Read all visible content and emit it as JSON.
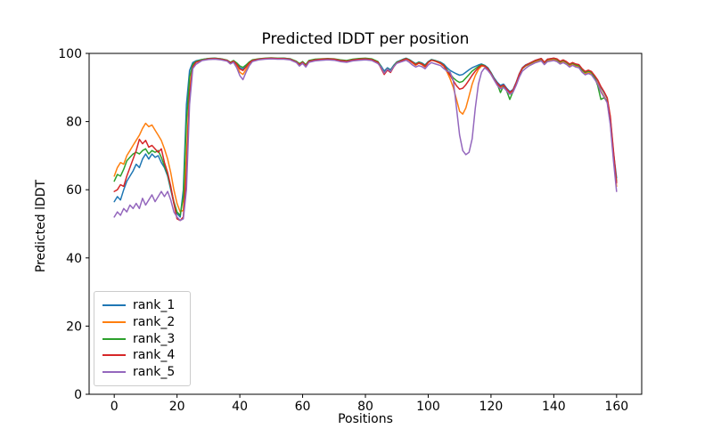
{
  "figure": {
    "title": "Predicted lDDT per position",
    "xlabel": "Positions",
    "ylabel": "Predicted lDDT",
    "background_color": "#ffffff",
    "axis_color": "#000000"
  },
  "chart_data": {
    "type": "line",
    "title": "Predicted lDDT per position",
    "xlabel": "Positions",
    "ylabel": "Predicted lDDT",
    "xlim": [
      -8,
      168
    ],
    "ylim": [
      0,
      100
    ],
    "x_ticks": [
      0,
      20,
      40,
      60,
      80,
      100,
      120,
      140,
      160
    ],
    "y_ticks": [
      0,
      20,
      40,
      60,
      80,
      100
    ],
    "grid": false,
    "legend_position": "lower left",
    "legend_entries": [
      "rank_1",
      "rank_2",
      "rank_3",
      "rank_4",
      "rank_5"
    ],
    "x": [
      0,
      1,
      2,
      3,
      4,
      5,
      6,
      7,
      8,
      9,
      10,
      11,
      12,
      13,
      14,
      15,
      16,
      17,
      18,
      19,
      20,
      21,
      22,
      23,
      24,
      25,
      26,
      28,
      30,
      32,
      34,
      36,
      37,
      38,
      39,
      40,
      41,
      42,
      43,
      44,
      46,
      48,
      50,
      52,
      54,
      56,
      58,
      59,
      60,
      61,
      62,
      64,
      66,
      68,
      70,
      72,
      74,
      76,
      78,
      80,
      82,
      84,
      85,
      86,
      87,
      88,
      89,
      90,
      92,
      93,
      94,
      95,
      96,
      97,
      98,
      99,
      100,
      101,
      102,
      103,
      104,
      105,
      106,
      107,
      108,
      109,
      110,
      111,
      112,
      113,
      114,
      115,
      116,
      117,
      118,
      119,
      120,
      121,
      122,
      123,
      124,
      125,
      126,
      127,
      128,
      129,
      130,
      131,
      132,
      134,
      136,
      137,
      138,
      140,
      141,
      142,
      143,
      144,
      145,
      146,
      147,
      148,
      149,
      150,
      151,
      152,
      153,
      154,
      155,
      156,
      157,
      158,
      159,
      160
    ],
    "series": [
      {
        "name": "rank_1",
        "color": "#1f77b4",
        "values": [
          56.5,
          58,
          57,
          60,
          62.5,
          64,
          65.5,
          67.5,
          66.5,
          69,
          70.5,
          69,
          70.5,
          69.5,
          70,
          68,
          66.5,
          64,
          60,
          56,
          53,
          52,
          60,
          85,
          95,
          97.3,
          97.8,
          98.2,
          98.5,
          98.6,
          98.4,
          98,
          97.3,
          97.8,
          97,
          95.8,
          95.4,
          96.2,
          97.3,
          98,
          98.4,
          98.5,
          98.6,
          98.5,
          98.6,
          98.4,
          97.6,
          96.8,
          97.5,
          96.5,
          97.8,
          98.2,
          98.3,
          98.4,
          98.3,
          98,
          97.8,
          98.2,
          98.4,
          98.5,
          98.3,
          97.5,
          96.3,
          94.8,
          95.8,
          95.2,
          96.5,
          97.5,
          98.3,
          98.6,
          98.2,
          97.6,
          97,
          97.5,
          97.2,
          96.6,
          97.6,
          98.2,
          98,
          97.7,
          97.4,
          96.8,
          95.8,
          95,
          94.5,
          94,
          93.6,
          93.8,
          94.5,
          95.2,
          95.8,
          96.2,
          96.6,
          96.9,
          96.5,
          95.8,
          94.4,
          92.8,
          91.5,
          90.6,
          91,
          89.8,
          88.8,
          89.4,
          91.5,
          94,
          95.8,
          96.6,
          97,
          97.9,
          98.5,
          97.4,
          98.3,
          98.6,
          98.3,
          97.6,
          98,
          97.5,
          96.8,
          97.2,
          96.8,
          96.6,
          95.4,
          94.6,
          95,
          94.6,
          93.4,
          92,
          90,
          88.5,
          86.8,
          81,
          71,
          63.5
        ]
      },
      {
        "name": "rank_2",
        "color": "#ff7f0e",
        "values": [
          64,
          66.5,
          68,
          67.5,
          70,
          71.5,
          73,
          74.5,
          76,
          78,
          79.5,
          78.5,
          79,
          77.5,
          76,
          74.5,
          72,
          69,
          65,
          60,
          56,
          53.5,
          54,
          70,
          90,
          96.5,
          97.5,
          98.1,
          98.4,
          98.5,
          98.3,
          97.8,
          97,
          97.5,
          96.2,
          94.5,
          93.8,
          95.3,
          96.8,
          97.8,
          98.3,
          98.4,
          98.5,
          98.4,
          98.5,
          98.3,
          97.4,
          96.5,
          97.3,
          96.2,
          97.6,
          98,
          98.2,
          98.3,
          98.2,
          97.8,
          97.6,
          98,
          98.2,
          98.3,
          98.1,
          97.2,
          95.8,
          94,
          95.3,
          94.6,
          96.2,
          97.3,
          98,
          98.4,
          97.9,
          97.2,
          96.5,
          97.1,
          96.7,
          96,
          97.3,
          98,
          97.8,
          97.4,
          97,
          96.2,
          94.5,
          92.5,
          90,
          86.5,
          83,
          82.2,
          84,
          87.5,
          91,
          93.5,
          95.3,
          96.3,
          96.2,
          95.4,
          94,
          92.3,
          90.8,
          89.8,
          90.2,
          89.2,
          88.2,
          89,
          91.2,
          93.8,
          95.5,
          96.3,
          96.7,
          97.5,
          98.1,
          97,
          97.9,
          98.2,
          97.9,
          97.2,
          97.6,
          97.1,
          96.3,
          96.8,
          96.3,
          96.1,
          94.8,
          94,
          94.4,
          94,
          92.8,
          91.2,
          89,
          87.5,
          85.8,
          79.5,
          69.5,
          61
        ]
      },
      {
        "name": "rank_3",
        "color": "#2ca02c",
        "values": [
          62.5,
          64.5,
          64,
          66,
          68.5,
          69.5,
          70.5,
          71,
          70.5,
          71.5,
          72,
          70.5,
          71.5,
          71,
          71.5,
          69.5,
          67,
          64.5,
          60.5,
          56.5,
          53.5,
          52.5,
          58,
          80,
          93,
          96.8,
          97.6,
          98.2,
          98.5,
          98.6,
          98.4,
          98,
          97.4,
          97.9,
          97.2,
          96.3,
          95.9,
          96.6,
          97.5,
          98.1,
          98.4,
          98.6,
          98.7,
          98.6,
          98.6,
          98.4,
          97.7,
          97,
          97.6,
          96.7,
          97.9,
          98.3,
          98.4,
          98.5,
          98.4,
          98.1,
          97.9,
          98.3,
          98.5,
          98.6,
          98.4,
          97.6,
          96,
          94.3,
          95.5,
          94.8,
          96.3,
          97.4,
          98.2,
          98.5,
          98.1,
          97.5,
          96.9,
          97.4,
          97,
          96.4,
          97.5,
          98.1,
          97.9,
          97.6,
          97.2,
          96.5,
          95.2,
          94,
          92.8,
          92,
          91.5,
          91.8,
          92.8,
          93.8,
          94.8,
          95.5,
          96.2,
          96.7,
          96.4,
          95.6,
          94.2,
          92.5,
          91,
          88.5,
          90.5,
          89,
          86.5,
          88.8,
          91,
          93.6,
          95.6,
          96.4,
          96.9,
          97.8,
          98.4,
          97.3,
          98.2,
          98.5,
          98.2,
          97.5,
          97.9,
          97.4,
          96.7,
          97.1,
          96.6,
          96.4,
          95.2,
          94.4,
          94.8,
          94.4,
          93,
          90.5,
          86.5,
          87,
          86,
          80,
          70,
          62.5
        ]
      },
      {
        "name": "rank_4",
        "color": "#d62728",
        "values": [
          59.5,
          60,
          61.5,
          61,
          64,
          66.5,
          69,
          71.5,
          74.8,
          73.5,
          74.5,
          72.5,
          73,
          72,
          71,
          72,
          68,
          65,
          61,
          56,
          51.5,
          51,
          52,
          65,
          88,
          96,
          97.4,
          98,
          98.4,
          98.5,
          98.3,
          97.9,
          97.2,
          97.7,
          96.8,
          95.4,
          95,
          96,
          97.2,
          97.9,
          98.3,
          98.5,
          98.6,
          98.5,
          98.5,
          98.3,
          97.5,
          96.7,
          97.4,
          96.4,
          97.7,
          98.1,
          98.3,
          98.4,
          98.3,
          97.9,
          97.7,
          98.1,
          98.3,
          98.4,
          98.2,
          97.4,
          95.6,
          93.8,
          95.1,
          94.4,
          96,
          97.2,
          98.1,
          98.4,
          98,
          97.4,
          96.7,
          97.2,
          96.9,
          96.2,
          97.4,
          98,
          97.8,
          97.5,
          97.1,
          96.4,
          94.9,
          93.5,
          92,
          90.5,
          89.5,
          89.8,
          90.8,
          92.2,
          93.6,
          94.8,
          95.8,
          96.5,
          96.3,
          95.5,
          94.1,
          92.4,
          91.2,
          90.2,
          90.7,
          89.5,
          88.5,
          89.2,
          91.3,
          93.9,
          95.7,
          96.5,
          97,
          97.9,
          98.5,
          97.4,
          98.3,
          98.6,
          98.4,
          97.7,
          98.1,
          97.6,
          96.9,
          97.3,
          96.9,
          96.7,
          95.5,
          94.7,
          95.1,
          94.7,
          93.5,
          92.2,
          90.3,
          88.8,
          87,
          81.5,
          71.5,
          62
        ]
      },
      {
        "name": "rank_5",
        "color": "#9467bd",
        "values": [
          52,
          53.5,
          52.5,
          54.5,
          53.5,
          55.5,
          54.5,
          56,
          54.5,
          57.5,
          55.5,
          57,
          58.5,
          56.5,
          58,
          59.5,
          58,
          59.5,
          57,
          53.5,
          52,
          51,
          51.5,
          60,
          85,
          95.5,
          96.8,
          97.9,
          98.2,
          98.3,
          98.1,
          97.7,
          96.9,
          97.4,
          95.8,
          93.5,
          92.3,
          94.5,
          96.4,
          97.6,
          98.1,
          98.3,
          98.4,
          98.3,
          98.3,
          98.1,
          97.3,
          96.3,
          97.1,
          96,
          97.4,
          97.8,
          98,
          98.1,
          98,
          97.6,
          97.4,
          97.8,
          98,
          98.1,
          97.9,
          97,
          95.9,
          94.2,
          95.4,
          94.7,
          96.1,
          97.1,
          97.7,
          98,
          97.4,
          96.6,
          96,
          96.4,
          96.1,
          95.5,
          96.6,
          97.3,
          97,
          96.7,
          96.4,
          95.5,
          94.8,
          94.5,
          92,
          84,
          76,
          71.5,
          70.3,
          71,
          75,
          84,
          91,
          94.5,
          95.8,
          95,
          93.8,
          92.2,
          90.6,
          89.6,
          90,
          89,
          88,
          88.6,
          90.6,
          93,
          94.8,
          95.6,
          96.3,
          97.2,
          97.8,
          96.7,
          97.6,
          97.9,
          97.6,
          96.9,
          97.3,
          96.8,
          96,
          96.5,
          96,
          95.8,
          94.5,
          93.7,
          94.1,
          93.7,
          92.4,
          91,
          88.7,
          87.2,
          85.5,
          79,
          68.5,
          59.5
        ]
      }
    ]
  }
}
